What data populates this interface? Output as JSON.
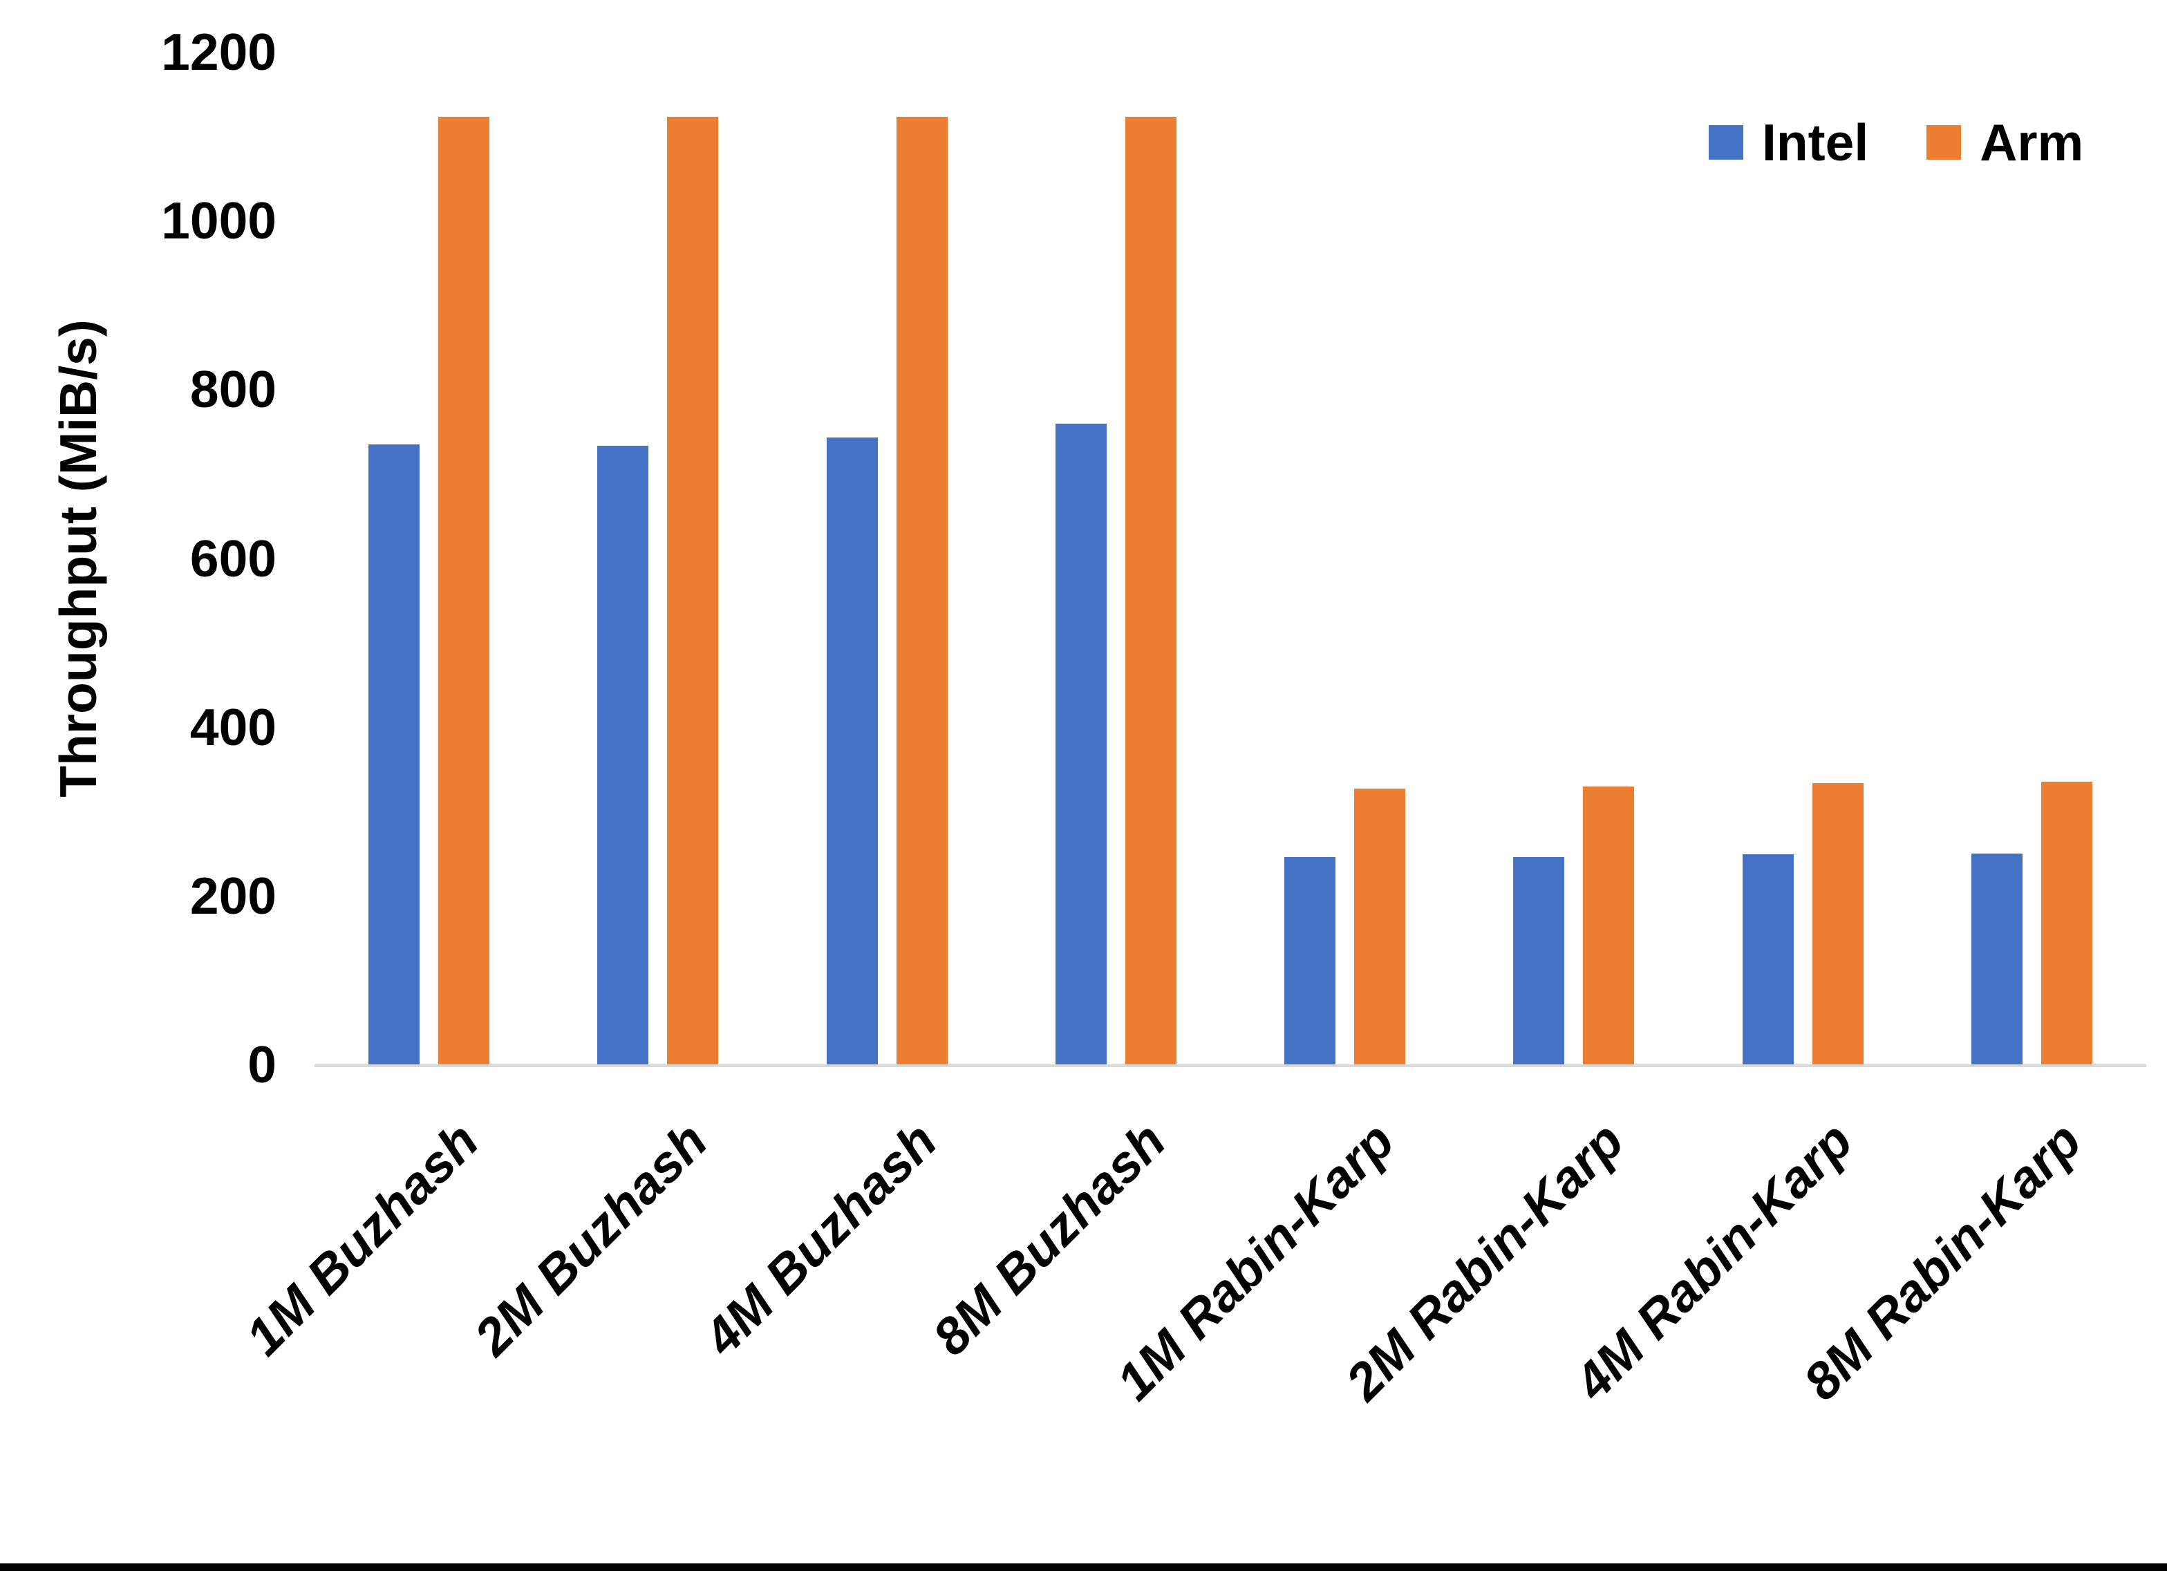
{
  "page": {
    "background_color": "#FFFFFF",
    "bottom_border_color": "#000000"
  },
  "chart_data": {
    "type": "bar",
    "title": "",
    "xlabel": "",
    "ylabel": "Throughput (MiB/s)",
    "categories": [
      "1M Buzhash",
      "2M Buzhash",
      "4M Buzhash",
      "8M Buzhash",
      "1M Rabin-Karp",
      "2M Rabin-Karp",
      "4M Rabin-Karp",
      "8M Rabin-Karp"
    ],
    "series": [
      {
        "name": "Intel",
        "color": "#4472C4",
        "values": [
          735,
          733,
          743,
          759,
          246,
          246,
          249,
          250
        ]
      },
      {
        "name": "Arm",
        "color": "#ED7D31",
        "values": [
          1123,
          1123,
          1123,
          1123,
          327,
          329,
          333,
          335
        ]
      }
    ],
    "ylim": [
      0,
      1200
    ],
    "y_ticks": [
      0,
      200,
      400,
      600,
      800,
      1000,
      1200
    ],
    "grid": false,
    "legend_position": "top-right",
    "axis_line_color": "#D9D9D9",
    "text_color": "#000000"
  }
}
